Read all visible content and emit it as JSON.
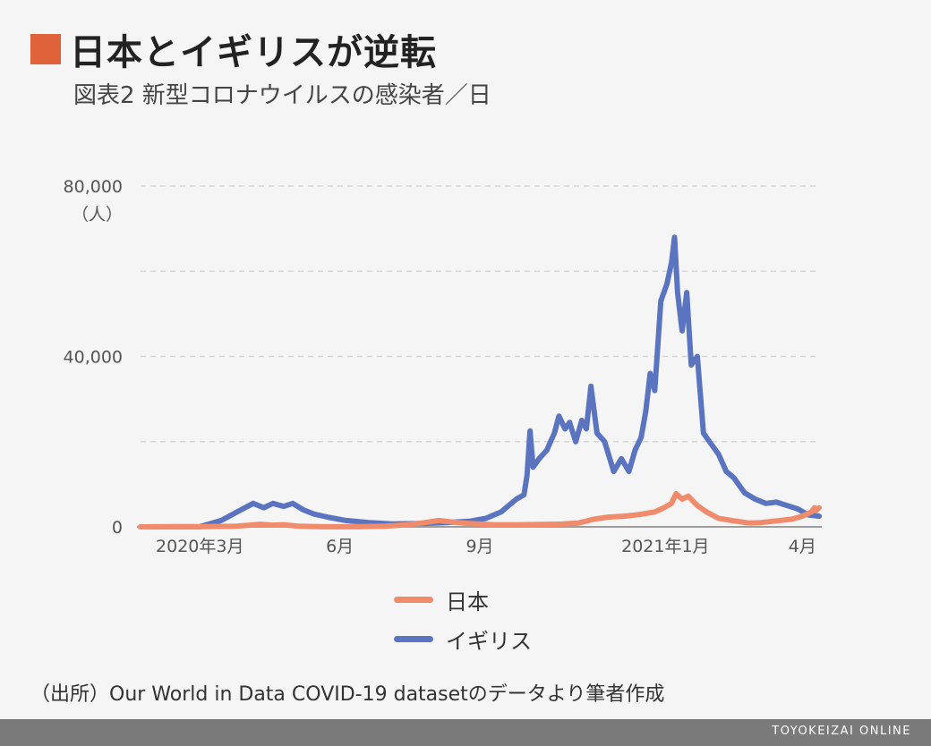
{
  "title": "日本とイギリスが逆転",
  "subtitle": "図表2 新型コロナウイルスの感染者／日",
  "source": "（出所）Our World in Data COVID-19 datasetのデータより筆者作成",
  "brand": "TOYOKEIZAI ONLINE",
  "colors": {
    "accent": "#e0623b",
    "japan": "#f08c6c",
    "uk": "#5b74c0",
    "grid": "#d6d6d6",
    "axis": "#9e9e9e"
  },
  "legend": [
    {
      "name": "日本",
      "color": "#f08c6c"
    },
    {
      "name": "イギリス",
      "color": "#5b74c0"
    }
  ],
  "chart_data": {
    "type": "line",
    "y_unit": "（人）",
    "ylim": [
      0,
      80000
    ],
    "y_ticks": [
      {
        "value": 0,
        "label": "0"
      },
      {
        "value": 40000,
        "label": "40,000"
      },
      {
        "value": 80000,
        "label": "80,000"
      }
    ],
    "y_gridlines": [
      20000,
      40000,
      60000,
      80000
    ],
    "xlim": [
      "2020-01-22",
      "2021-04-12"
    ],
    "x_ticks": [
      {
        "date": "2020-03-01",
        "label": "2020年3月"
      },
      {
        "date": "2020-06-01",
        "label": "6月"
      },
      {
        "date": "2020-09-01",
        "label": "9月"
      },
      {
        "date": "2021-01-01",
        "label": "2021年1月"
      },
      {
        "date": "2021-04-01",
        "label": "4月"
      }
    ],
    "series": [
      {
        "name": "日本",
        "color": "#f08c6c",
        "points": [
          [
            "2020-01-22",
            0
          ],
          [
            "2020-03-01",
            20
          ],
          [
            "2020-03-25",
            150
          ],
          [
            "2020-04-10",
            600
          ],
          [
            "2020-04-18",
            400
          ],
          [
            "2020-04-25",
            500
          ],
          [
            "2020-05-05",
            150
          ],
          [
            "2020-05-20",
            30
          ],
          [
            "2020-06-15",
            50
          ],
          [
            "2020-07-01",
            150
          ],
          [
            "2020-07-15",
            500
          ],
          [
            "2020-07-25",
            900
          ],
          [
            "2020-08-05",
            1500
          ],
          [
            "2020-08-15",
            1100
          ],
          [
            "2020-08-25",
            800
          ],
          [
            "2020-09-10",
            500
          ],
          [
            "2020-09-25",
            500
          ],
          [
            "2020-10-10",
            550
          ],
          [
            "2020-10-25",
            650
          ],
          [
            "2020-11-05",
            900
          ],
          [
            "2020-11-15",
            1800
          ],
          [
            "2020-11-25",
            2300
          ],
          [
            "2020-12-05",
            2500
          ],
          [
            "2020-12-15",
            2900
          ],
          [
            "2020-12-25",
            3500
          ],
          [
            "2020-12-31",
            4500
          ],
          [
            "2021-01-05",
            5500
          ],
          [
            "2021-01-08",
            7800
          ],
          [
            "2021-01-12",
            6500
          ],
          [
            "2021-01-16",
            7200
          ],
          [
            "2021-01-22",
            5000
          ],
          [
            "2021-01-28",
            3500
          ],
          [
            "2021-02-05",
            2000
          ],
          [
            "2021-02-15",
            1400
          ],
          [
            "2021-02-25",
            900
          ],
          [
            "2021-03-05",
            1000
          ],
          [
            "2021-03-15",
            1400
          ],
          [
            "2021-03-25",
            1800
          ],
          [
            "2021-04-01",
            2500
          ],
          [
            "2021-04-07",
            3500
          ],
          [
            "2021-04-09",
            4500
          ],
          [
            "2021-04-10",
            3800
          ],
          [
            "2021-04-12",
            4500
          ]
        ]
      },
      {
        "name": "イギリス",
        "color": "#5b74c0",
        "points": [
          [
            "2020-01-22",
            0
          ],
          [
            "2020-03-01",
            50
          ],
          [
            "2020-03-15",
            1500
          ],
          [
            "2020-03-28",
            4000
          ],
          [
            "2020-04-05",
            5500
          ],
          [
            "2020-04-12",
            4500
          ],
          [
            "2020-04-18",
            5500
          ],
          [
            "2020-04-25",
            4800
          ],
          [
            "2020-05-01",
            5500
          ],
          [
            "2020-05-08",
            4000
          ],
          [
            "2020-05-15",
            3000
          ],
          [
            "2020-05-25",
            2200
          ],
          [
            "2020-06-05",
            1500
          ],
          [
            "2020-06-20",
            1000
          ],
          [
            "2020-07-05",
            700
          ],
          [
            "2020-07-25",
            800
          ],
          [
            "2020-08-10",
            1000
          ],
          [
            "2020-08-25",
            1300
          ],
          [
            "2020-09-05",
            2000
          ],
          [
            "2020-09-15",
            3500
          ],
          [
            "2020-09-25",
            6500
          ],
          [
            "2020-09-30",
            7500
          ],
          [
            "2020-10-02",
            12000
          ],
          [
            "2020-10-04",
            22500
          ],
          [
            "2020-10-06",
            14000
          ],
          [
            "2020-10-10",
            16000
          ],
          [
            "2020-10-15",
            18000
          ],
          [
            "2020-10-20",
            22000
          ],
          [
            "2020-10-23",
            26000
          ],
          [
            "2020-10-27",
            23000
          ],
          [
            "2020-10-30",
            24500
          ],
          [
            "2020-11-03",
            20000
          ],
          [
            "2020-11-07",
            25000
          ],
          [
            "2020-11-10",
            23000
          ],
          [
            "2020-11-13",
            33000
          ],
          [
            "2020-11-17",
            22000
          ],
          [
            "2020-11-22",
            20000
          ],
          [
            "2020-11-28",
            13000
          ],
          [
            "2020-12-03",
            16000
          ],
          [
            "2020-12-08",
            13000
          ],
          [
            "2020-12-12",
            18000
          ],
          [
            "2020-12-16",
            21000
          ],
          [
            "2020-12-19",
            27000
          ],
          [
            "2020-12-22",
            36000
          ],
          [
            "2020-12-25",
            32000
          ],
          [
            "2020-12-29",
            53000
          ],
          [
            "2021-01-02",
            57000
          ],
          [
            "2021-01-05",
            62000
          ],
          [
            "2021-01-07",
            68000
          ],
          [
            "2021-01-09",
            55000
          ],
          [
            "2021-01-12",
            46000
          ],
          [
            "2021-01-15",
            55000
          ],
          [
            "2021-01-18",
            38000
          ],
          [
            "2021-01-22",
            40000
          ],
          [
            "2021-01-26",
            22000
          ],
          [
            "2021-01-30",
            20000
          ],
          [
            "2021-02-05",
            17000
          ],
          [
            "2021-02-10",
            13000
          ],
          [
            "2021-02-15",
            11500
          ],
          [
            "2021-02-22",
            8000
          ],
          [
            "2021-03-01",
            6500
          ],
          [
            "2021-03-08",
            5500
          ],
          [
            "2021-03-15",
            5800
          ],
          [
            "2021-03-22",
            5000
          ],
          [
            "2021-03-29",
            4200
          ],
          [
            "2021-04-05",
            2800
          ],
          [
            "2021-04-12",
            2500
          ]
        ]
      }
    ]
  }
}
